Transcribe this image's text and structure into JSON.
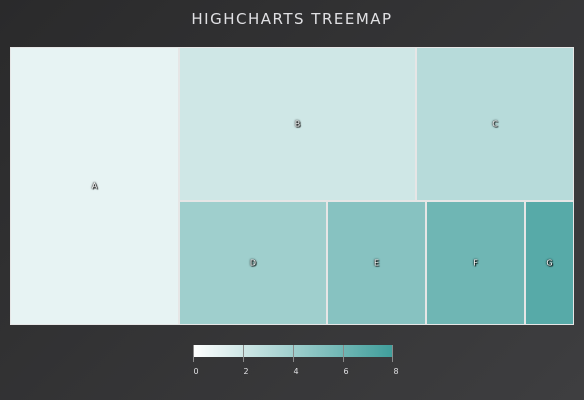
{
  "chart_data": {
    "type": "treemap",
    "title": "Highcharts Treemap",
    "points": [
      {
        "name": "A",
        "value": 6,
        "colorValue": 1
      },
      {
        "name": "B",
        "value": 6,
        "colorValue": 2
      },
      {
        "name": "C",
        "value": 4,
        "colorValue": 3
      },
      {
        "name": "D",
        "value": 3,
        "colorValue": 4
      },
      {
        "name": "E",
        "value": 2,
        "colorValue": 5
      },
      {
        "name": "F",
        "value": 2,
        "colorValue": 6
      },
      {
        "name": "G",
        "value": 1,
        "colorValue": 7
      }
    ],
    "colorAxis": {
      "min": 0,
      "max": 8,
      "minColor": "#FFFFFF",
      "maxColor": "#3f9e9b",
      "ticks": [
        0,
        2,
        4,
        6,
        8
      ]
    },
    "legend_placement": "bottom-center"
  }
}
